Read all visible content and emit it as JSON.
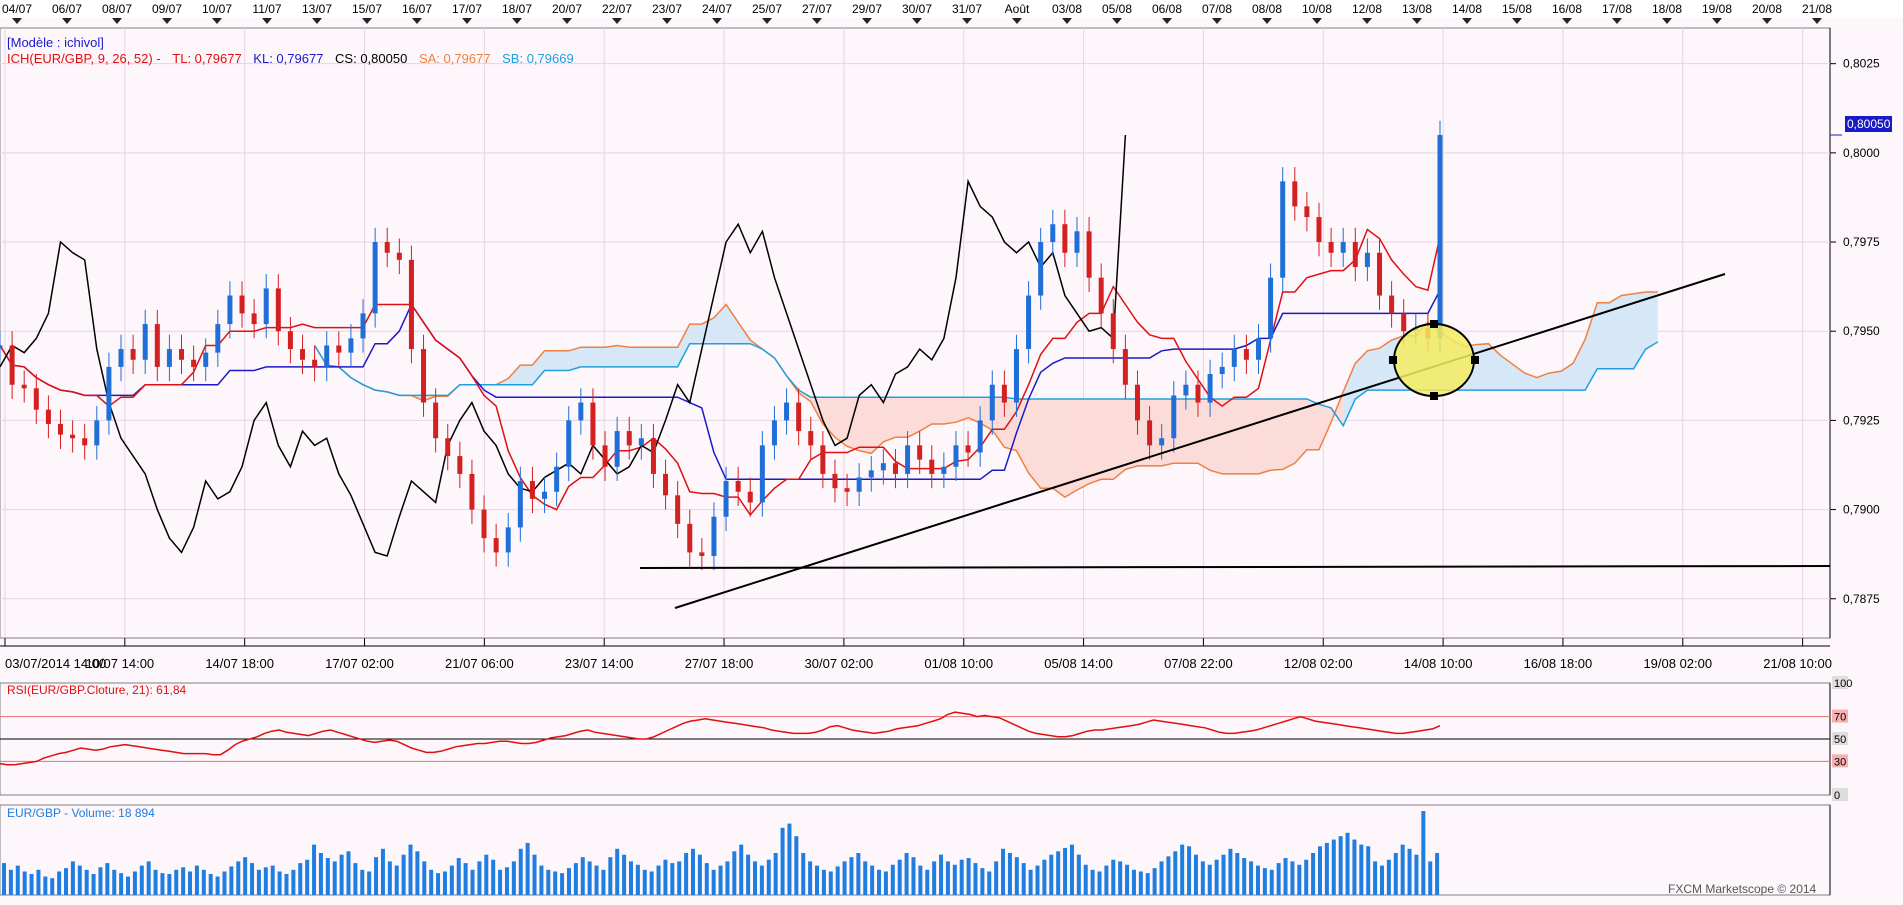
{
  "colors": {
    "bg": "#fdf6fb",
    "frame": "#808080",
    "grid": "#e6d3e6",
    "up": "#1f6fd6",
    "down": "#d32020",
    "tenkan": "#e01010",
    "kijun": "#1a1ac8",
    "chikou": "#000000",
    "senkouA": "#f08040",
    "senkouB": "#20a0e0",
    "cloudBull": "#d6e8f8",
    "cloudBear": "#fbdcd8",
    "rsi": "#e01010",
    "volume": "#1f7ee0",
    "highlight": "#f4ec60"
  },
  "header": {
    "model": "[Modèle : ichivol]",
    "ich_name": "ICH(EUR/GBP, 9, 26, 52) -",
    "tl": "TL: 0,79677",
    "kl": "KL: 0,79677",
    "cs": "CS: 0,80050",
    "sa": "SA: 0,79677",
    "sb": "SB: 0,79669"
  },
  "top_dates": [
    "04/07",
    "06/07",
    "08/07",
    "09/07",
    "10/07",
    "11/07",
    "13/07",
    "15/07",
    "16/07",
    "17/07",
    "18/07",
    "20/07",
    "22/07",
    "23/07",
    "24/07",
    "25/07",
    "27/07",
    "29/07",
    "30/07",
    "31/07",
    "Août",
    "03/08",
    "05/08",
    "06/08",
    "07/08",
    "08/08",
    "10/08",
    "12/08",
    "13/08",
    "14/08",
    "15/08",
    "16/08",
    "17/08",
    "18/08",
    "19/08",
    "20/08",
    "21/08"
  ],
  "time_labels": [
    "03/07/2014 14:00",
    "10/07 14:00",
    "14/07 18:00",
    "17/07 02:00",
    "21/07 06:00",
    "23/07 14:00",
    "27/07 18:00",
    "30/07 02:00",
    "01/08 10:00",
    "05/08 14:00",
    "07/08 22:00",
    "12/08 02:00",
    "14/08 10:00",
    "16/08 18:00",
    "19/08 02:00",
    "21/08 10:00"
  ],
  "rsi_panel": {
    "title": "RSI(EUR/GBP.Cloture, 21): 61,84",
    "ticks": [
      "100",
      "70",
      "50",
      "30",
      "0"
    ]
  },
  "volume_panel": {
    "title": "EUR/GBP - Volume: 18 894"
  },
  "watermark": "FXCM Marketscope © 2014",
  "current_price_tag": "0,80050",
  "chart_data": {
    "type": "candlestick",
    "symbol": "EUR/GBP",
    "ylim": [
      0.7864,
      0.8035
    ],
    "yticks": [
      "0,8025",
      "0,8000",
      "0,7975",
      "0,7950",
      "0,7925",
      "0,7900",
      "0,7875"
    ],
    "grid": true,
    "current_price": 0.8005,
    "trendlines": [
      {
        "name": "support-trendline",
        "from": {
          "t": "23/07 14:00",
          "y": 0.7875
        },
        "to": {
          "t": "18/08",
          "y": 0.7964
        }
      },
      {
        "name": "horizontal-line",
        "from": {
          "t": "22/07",
          "y": 0.7886
        },
        "to": {
          "t": "21/08",
          "y": 0.7887
        }
      }
    ],
    "candles": [
      0.7946,
      0.7935,
      0.7934,
      0.7928,
      0.7924,
      0.7921,
      0.792,
      0.7918,
      0.7925,
      0.794,
      0.7945,
      0.7942,
      0.7952,
      0.794,
      0.7945,
      0.7942,
      0.794,
      0.7944,
      0.7952,
      0.796,
      0.7955,
      0.7952,
      0.7962,
      0.795,
      0.7945,
      0.7942,
      0.794,
      0.7946,
      0.7944,
      0.7948,
      0.7955,
      0.7975,
      0.7972,
      0.797,
      0.7945,
      0.793,
      0.792,
      0.7915,
      0.791,
      0.79,
      0.7892,
      0.7888,
      0.7895,
      0.7908,
      0.7903,
      0.7905,
      0.7912,
      0.7925,
      0.793,
      0.7918,
      0.7912,
      0.7922,
      0.7918,
      0.792,
      0.791,
      0.7904,
      0.7896,
      0.7888,
      0.7887,
      0.7898,
      0.7908,
      0.7905,
      0.7902,
      0.7918,
      0.7925,
      0.793,
      0.7922,
      0.7918,
      0.791,
      0.7906,
      0.7905,
      0.7909,
      0.7911,
      0.7913,
      0.791,
      0.7918,
      0.7914,
      0.791,
      0.7912,
      0.7918,
      0.7916,
      0.7925,
      0.7935,
      0.793,
      0.7945,
      0.796,
      0.7975,
      0.798,
      0.7972,
      0.7978,
      0.7965,
      0.7955,
      0.7945,
      0.7935,
      0.7925,
      0.7918,
      0.792,
      0.7932,
      0.7935,
      0.793,
      0.7938,
      0.794,
      0.7945,
      0.7942,
      0.7948,
      0.7965,
      0.7992,
      0.7985,
      0.7982,
      0.7975,
      0.7972,
      0.7975,
      0.7968,
      0.7972,
      0.796,
      0.7955,
      0.795,
      0.7951,
      0.7948,
      0.8005
    ],
    "ohlc_note": "close prices per 4h candle, read from price axis",
    "rsi": [
      28,
      27,
      27,
      28,
      29,
      30,
      33,
      35,
      37,
      38,
      40,
      42,
      41,
      40,
      41,
      43,
      44,
      45,
      44,
      43,
      42,
      41,
      40,
      39,
      38,
      37,
      37,
      37,
      37,
      36,
      36,
      40,
      45,
      48,
      50,
      52,
      55,
      57,
      58,
      56,
      55,
      54,
      53,
      55,
      57,
      58,
      56,
      54,
      52,
      50,
      48,
      47,
      48,
      49,
      48,
      45,
      42,
      40,
      38,
      38,
      39,
      41,
      43,
      44,
      45,
      46,
      46,
      47,
      48,
      48,
      47,
      46,
      46,
      47,
      49,
      51,
      52,
      53,
      55,
      57,
      58,
      56,
      55,
      54,
      53,
      52,
      51,
      50,
      50,
      52,
      55,
      58,
      61,
      64,
      66,
      67,
      68,
      67,
      66,
      65,
      64,
      63,
      62,
      61,
      60,
      58,
      57,
      56,
      55,
      55,
      55,
      56,
      58,
      61,
      62,
      60,
      58,
      57,
      56,
      55,
      56,
      57,
      59,
      60,
      61,
      62,
      64,
      66,
      68,
      72,
      74,
      73,
      72,
      70,
      71,
      70,
      69,
      66,
      63,
      60,
      57,
      55,
      54,
      53,
      52,
      52,
      53,
      55,
      57,
      58,
      58,
      59,
      60,
      61,
      62,
      63,
      65,
      67,
      66,
      65,
      64,
      63,
      62,
      61,
      60,
      58,
      56,
      55,
      55,
      56,
      57,
      58,
      60,
      62,
      64,
      66,
      68,
      70,
      68,
      66,
      65,
      64,
      63,
      62,
      61,
      60,
      59,
      58,
      57,
      56,
      55,
      55,
      56,
      57,
      58,
      59,
      61.84
    ],
    "volume": [
      38,
      30,
      35,
      28,
      25,
      30,
      22,
      20,
      28,
      32,
      40,
      35,
      30,
      25,
      33,
      38,
      30,
      26,
      22,
      28,
      35,
      40,
      30,
      26,
      25,
      30,
      33,
      28,
      35,
      30,
      25,
      22,
      28,
      34,
      40,
      45,
      38,
      30,
      33,
      35,
      28,
      25,
      30,
      38,
      42,
      60,
      50,
      44,
      40,
      48,
      52,
      38,
      30,
      28,
      45,
      55,
      40,
      35,
      48,
      60,
      52,
      40,
      30,
      26,
      28,
      35,
      44,
      38,
      30,
      40,
      48,
      42,
      30,
      33,
      40,
      55,
      62,
      48,
      35,
      30,
      28,
      26,
      32,
      38,
      45,
      40,
      35,
      30,
      45,
      55,
      48,
      40,
      36,
      30,
      28,
      35,
      42,
      38,
      40,
      50,
      55,
      48,
      38,
      30,
      35,
      40,
      52,
      60,
      48,
      40,
      35,
      42,
      50,
      80,
      85,
      70,
      50,
      40,
      35,
      30,
      28,
      34,
      40,
      45,
      50,
      40,
      35,
      30,
      28,
      36,
      42,
      50,
      45,
      35,
      30,
      40,
      48,
      40,
      36,
      42,
      44,
      38,
      32,
      28,
      40,
      55,
      50,
      45,
      38,
      30,
      35,
      42,
      48,
      52,
      56,
      60,
      48,
      36,
      30,
      28,
      35,
      42,
      40,
      36,
      30,
      28,
      26,
      32,
      40,
      46,
      52,
      60,
      58,
      48,
      40,
      36,
      42,
      48,
      55,
      50,
      44,
      40,
      35,
      32,
      30,
      38,
      44,
      40,
      36,
      42,
      50,
      58,
      62,
      66,
      70,
      74,
      66,
      60,
      58,
      40,
      35,
      42,
      50,
      60,
      55,
      48,
      100,
      40,
      50
    ]
  }
}
